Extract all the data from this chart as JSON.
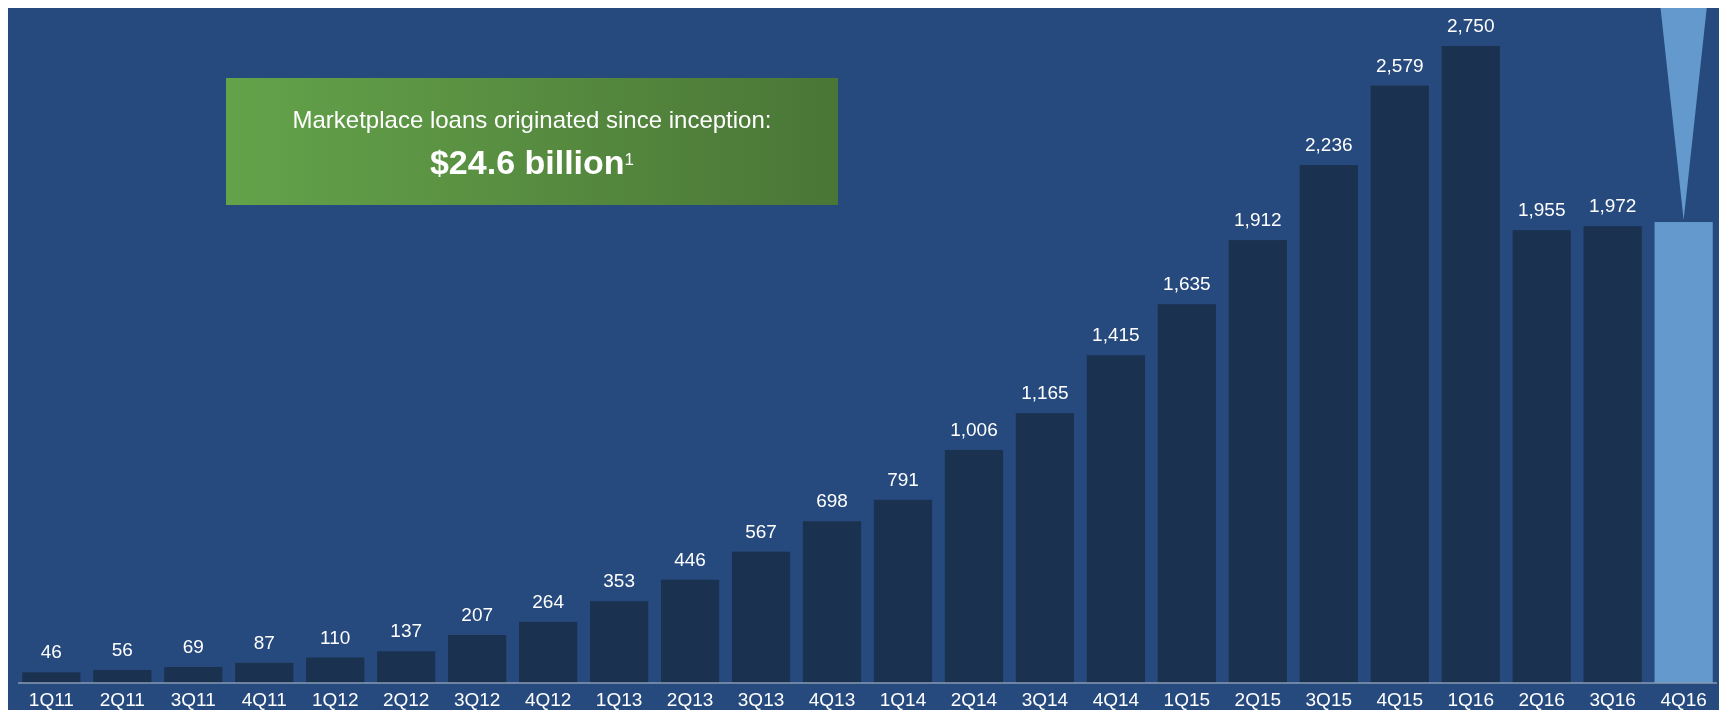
{
  "chart_data": {
    "type": "bar",
    "categories": [
      "1Q11",
      "2Q11",
      "3Q11",
      "4Q11",
      "1Q12",
      "2Q12",
      "3Q12",
      "4Q12",
      "1Q13",
      "2Q13",
      "3Q13",
      "4Q13",
      "1Q14",
      "2Q14",
      "3Q14",
      "4Q14",
      "1Q15",
      "2Q15",
      "3Q15",
      "4Q15",
      "1Q16",
      "2Q16",
      "3Q16",
      "4Q16"
    ],
    "values": [
      46,
      56,
      69,
      87,
      110,
      137,
      207,
      264,
      353,
      446,
      567,
      698,
      791,
      1006,
      1165,
      1415,
      1635,
      1912,
      2236,
      2579,
      2750,
      1955,
      1972,
      1990
    ],
    "value_labels": [
      "46",
      "56",
      "69",
      "87",
      "110",
      "137",
      "207",
      "264",
      "353",
      "446",
      "567",
      "698",
      "791",
      "1,006",
      "1,165",
      "1,415",
      "1,635",
      "1,912",
      "2,236",
      "2,579",
      "2,750",
      "1,955",
      "1,972",
      null
    ],
    "colors": [
      "#1b3150",
      "#1b3150",
      "#1b3150",
      "#1b3150",
      "#1b3150",
      "#1b3150",
      "#1b3150",
      "#1b3150",
      "#1b3150",
      "#1b3150",
      "#1b3150",
      "#1b3150",
      "#1b3150",
      "#1b3150",
      "#1b3150",
      "#1b3150",
      "#1b3150",
      "#1b3150",
      "#1b3150",
      "#1b3150",
      "#1b3150",
      "#1b3150",
      "#1b3150",
      "#6399cc"
    ],
    "relative": false,
    "annotations": [
      "Marketplace loans originated since inception:",
      "$24.6 billion$^{1}$"
    ]
  }
}
